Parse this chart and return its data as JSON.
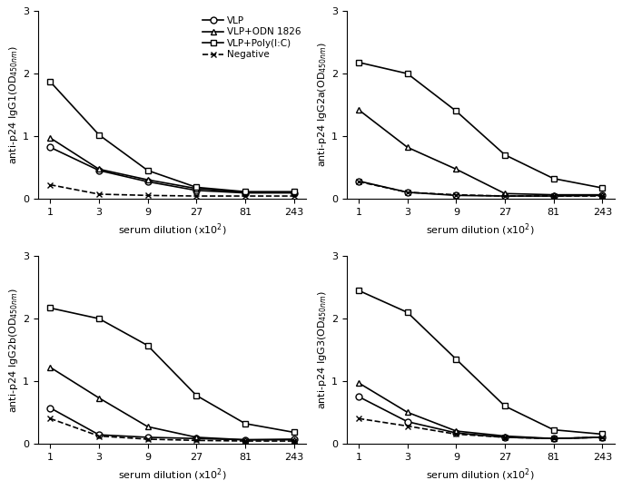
{
  "x_positions": [
    0,
    1,
    2,
    3,
    4,
    5
  ],
  "x_labels": [
    "1",
    "3",
    "9",
    "27",
    "81",
    "243"
  ],
  "ylim": [
    0,
    3
  ],
  "yticks": [
    0,
    1,
    2,
    3
  ],
  "panels": [
    {
      "ylabel_main": "anti-p24 IgG1",
      "ylabel_od": "OD$_{450nm}$",
      "ylabel_paren": true,
      "show_legend": true,
      "series": [
        {
          "name": "VLP",
          "y": [
            0.82,
            0.45,
            0.27,
            0.13,
            0.09,
            0.09
          ],
          "marker": "o",
          "ls": "-",
          "mfc": "white"
        },
        {
          "name": "VLP+ODN 1826",
          "y": [
            0.97,
            0.47,
            0.3,
            0.16,
            0.1,
            0.1
          ],
          "marker": "^",
          "ls": "-",
          "mfc": "white"
        },
        {
          "name": "VLP+Poly(I:C)",
          "y": [
            1.87,
            1.02,
            0.45,
            0.18,
            0.11,
            0.11
          ],
          "marker": "s",
          "ls": "-",
          "mfc": "white"
        },
        {
          "name": "Negative",
          "y": [
            0.22,
            0.07,
            0.05,
            0.04,
            0.04,
            0.04
          ],
          "marker": "x",
          "ls": "--",
          "mfc": "none"
        }
      ]
    },
    {
      "ylabel_main": "anti-p24 IgG2a",
      "ylabel_od": "OD$_{450nm}$",
      "ylabel_paren": true,
      "show_legend": false,
      "series": [
        {
          "name": "VLP",
          "y": [
            0.28,
            0.1,
            0.05,
            0.04,
            0.04,
            0.05
          ],
          "marker": "o",
          "ls": "-",
          "mfc": "white"
        },
        {
          "name": "VLP+ODN 1826",
          "y": [
            1.42,
            0.82,
            0.47,
            0.08,
            0.06,
            0.06
          ],
          "marker": "^",
          "ls": "-",
          "mfc": "white"
        },
        {
          "name": "VLP+Poly(I:C)",
          "y": [
            2.18,
            2.0,
            1.4,
            0.7,
            0.32,
            0.17
          ],
          "marker": "s",
          "ls": "-",
          "mfc": "white"
        },
        {
          "name": "Negative",
          "y": [
            0.27,
            0.1,
            0.06,
            0.04,
            0.04,
            0.04
          ],
          "marker": "x",
          "ls": "--",
          "mfc": "none"
        }
      ]
    },
    {
      "ylabel_main": "anti-p24 IgG2b",
      "ylabel_od": "OD$_{450nm}$",
      "ylabel_paren": true,
      "show_legend": false,
      "series": [
        {
          "name": "VLP",
          "y": [
            0.57,
            0.14,
            0.1,
            0.08,
            0.06,
            0.07
          ],
          "marker": "o",
          "ls": "-",
          "mfc": "white"
        },
        {
          "name": "VLP+ODN 1826",
          "y": [
            1.22,
            0.73,
            0.27,
            0.1,
            0.06,
            0.06
          ],
          "marker": "^",
          "ls": "-",
          "mfc": "white"
        },
        {
          "name": "VLP+Poly(I:C)",
          "y": [
            2.17,
            2.0,
            1.57,
            0.77,
            0.32,
            0.18
          ],
          "marker": "s",
          "ls": "-",
          "mfc": "white"
        },
        {
          "name": "Negative",
          "y": [
            0.4,
            0.12,
            0.07,
            0.05,
            0.04,
            0.04
          ],
          "marker": "x",
          "ls": "--",
          "mfc": "none"
        }
      ]
    },
    {
      "ylabel_main": "anti-p24 IgG3",
      "ylabel_od": "OD$_{450nm}$",
      "ylabel_paren": true,
      "show_legend": false,
      "series": [
        {
          "name": "VLP",
          "y": [
            0.75,
            0.35,
            0.17,
            0.1,
            0.08,
            0.1
          ],
          "marker": "o",
          "ls": "-",
          "mfc": "white"
        },
        {
          "name": "VLP+ODN 1826",
          "y": [
            0.97,
            0.5,
            0.2,
            0.12,
            0.08,
            0.1
          ],
          "marker": "^",
          "ls": "-",
          "mfc": "white"
        },
        {
          "name": "VLP+Poly(I:C)",
          "y": [
            2.45,
            2.1,
            1.35,
            0.6,
            0.22,
            0.15
          ],
          "marker": "s",
          "ls": "-",
          "mfc": "white"
        },
        {
          "name": "Negative",
          "y": [
            0.4,
            0.28,
            0.15,
            0.1,
            0.08,
            0.1
          ],
          "marker": "x",
          "ls": "--",
          "mfc": "none"
        }
      ]
    }
  ],
  "xlabel": "serum dilution (x10$^2$)",
  "bg_color": "#ffffff",
  "line_color": "#000000",
  "linewidth": 1.2,
  "markersize": 5,
  "fontsize_tick": 8,
  "fontsize_label": 8,
  "fontsize_legend": 7.5
}
